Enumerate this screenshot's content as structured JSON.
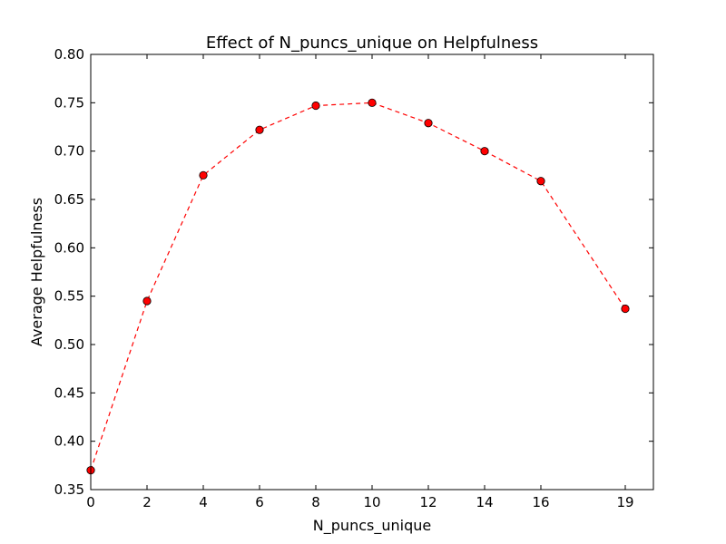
{
  "chart_data": {
    "type": "line",
    "title": "Effect of N_puncs_unique on Helpfulness",
    "xlabel": "N_puncs_unique",
    "ylabel": "Average Helpfulness",
    "xlim": [
      0,
      20
    ],
    "ylim": [
      0.35,
      0.8
    ],
    "xticks": [
      0,
      2,
      4,
      6,
      8,
      10,
      12,
      14,
      16,
      19
    ],
    "xtick_labels": [
      "0",
      "2",
      "4",
      "6",
      "8",
      "10",
      "12",
      "14",
      "16",
      "19"
    ],
    "yticks": [
      0.35,
      0.4,
      0.45,
      0.5,
      0.55,
      0.6,
      0.65,
      0.7,
      0.75,
      0.8
    ],
    "ytick_labels": [
      "0.35",
      "0.40",
      "0.45",
      "0.50",
      "0.55",
      "0.60",
      "0.65",
      "0.70",
      "0.75",
      "0.80"
    ],
    "grid": false,
    "series": [
      {
        "x": [
          0,
          2,
          4,
          6,
          8,
          10,
          12,
          14,
          16,
          19
        ],
        "y": [
          0.37,
          0.545,
          0.675,
          0.722,
          0.747,
          0.75,
          0.729,
          0.7,
          0.669,
          0.537
        ],
        "line_style": "dashed",
        "marker": "circle",
        "color": "#ff0000"
      }
    ]
  }
}
